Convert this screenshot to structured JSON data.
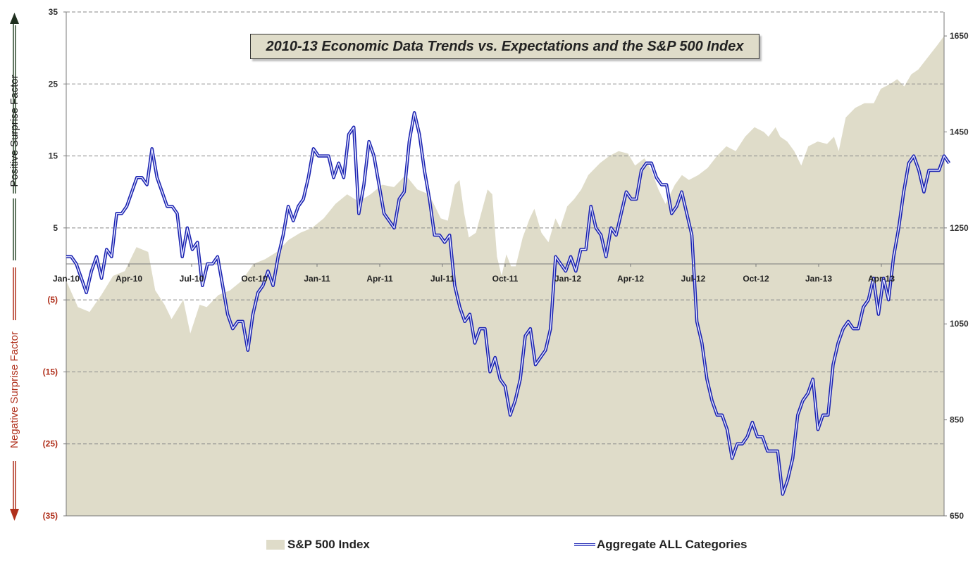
{
  "chart_data": {
    "type": "line",
    "title": "2010-13 Economic Data Trends vs. Expectations and the S&P 500 Index",
    "y_left_label_positive": "Positive Surprise Factor",
    "y_left_label_negative": "Negative Surprise Factor",
    "ylim_left": [
      -35,
      35
    ],
    "ylim_right": [
      650,
      1700
    ],
    "y_left_ticks": [
      {
        "value": 35,
        "label": "35"
      },
      {
        "value": 25,
        "label": "25"
      },
      {
        "value": 15,
        "label": "15"
      },
      {
        "value": 5,
        "label": "5"
      },
      {
        "value": -5,
        "label": "(5)"
      },
      {
        "value": -15,
        "label": "(15)"
      },
      {
        "value": -25,
        "label": "(25)"
      },
      {
        "value": -35,
        "label": "(35)"
      }
    ],
    "y_right_ticks": [
      {
        "value": 1650,
        "label": "1650"
      },
      {
        "value": 1450,
        "label": "1450"
      },
      {
        "value": 1250,
        "label": "1250"
      },
      {
        "value": 1050,
        "label": "1050"
      },
      {
        "value": 850,
        "label": "850"
      },
      {
        "value": 650,
        "label": "650"
      }
    ],
    "x_tick_labels": [
      "Jan-10",
      "Apr-10",
      "Jul-10",
      "Oct-10",
      "Jan-11",
      "Apr-11",
      "Jul-11",
      "Oct-11",
      "Jan-12",
      "Apr-12",
      "Jul-12",
      "Oct-12",
      "Jan-13",
      "Apr-13"
    ],
    "x_count": 175,
    "grid": true,
    "colors": {
      "area": "#dfdcc9",
      "line": "#1a22b0",
      "label_negative": "#b0301c",
      "label_positive": "#222222",
      "arrow_up": "#2e4a2e",
      "arrow_down": "#b0301c"
    },
    "series": [
      {
        "name": "S&P 500 Index",
        "type": "area",
        "axis": "right",
        "points": [
          [
            0,
            1140
          ],
          [
            5,
            1085
          ],
          [
            10,
            1075
          ],
          [
            15,
            1110
          ],
          [
            20,
            1150
          ],
          [
            25,
            1160
          ],
          [
            30,
            1210
          ],
          [
            35,
            1200
          ],
          [
            38,
            1120
          ],
          [
            42,
            1090
          ],
          [
            45,
            1060
          ],
          [
            50,
            1100
          ],
          [
            53,
            1030
          ],
          [
            57,
            1090
          ],
          [
            60,
            1085
          ],
          [
            65,
            1110
          ],
          [
            70,
            1120
          ],
          [
            75,
            1140
          ],
          [
            80,
            1175
          ],
          [
            85,
            1185
          ],
          [
            90,
            1200
          ],
          [
            95,
            1225
          ],
          [
            100,
            1240
          ],
          [
            105,
            1250
          ],
          [
            110,
            1270
          ],
          [
            115,
            1300
          ],
          [
            120,
            1320
          ],
          [
            125,
            1305
          ],
          [
            130,
            1320
          ],
          [
            135,
            1340
          ],
          [
            140,
            1335
          ],
          [
            145,
            1360
          ],
          [
            150,
            1330
          ],
          [
            155,
            1320
          ],
          [
            158,
            1290
          ],
          [
            160,
            1270
          ],
          [
            163,
            1265
          ],
          [
            166,
            1340
          ],
          [
            168,
            1350
          ],
          [
            170,
            1280
          ],
          [
            172,
            1230
          ],
          [
            175,
            1240
          ],
          [
            180,
            1330
          ],
          [
            182,
            1320
          ],
          [
            184,
            1190
          ],
          [
            186,
            1150
          ],
          [
            188,
            1195
          ],
          [
            190,
            1170
          ],
          [
            192,
            1170
          ],
          [
            195,
            1230
          ],
          [
            198,
            1270
          ],
          [
            200,
            1290
          ],
          [
            203,
            1240
          ],
          [
            206,
            1220
          ],
          [
            209,
            1270
          ],
          [
            211,
            1250
          ],
          [
            214,
            1295
          ],
          [
            217,
            1310
          ],
          [
            220,
            1330
          ],
          [
            223,
            1360
          ],
          [
            228,
            1385
          ],
          [
            232,
            1400
          ],
          [
            236,
            1410
          ],
          [
            240,
            1405
          ],
          [
            243,
            1380
          ],
          [
            247,
            1395
          ],
          [
            250,
            1370
          ],
          [
            253,
            1330
          ],
          [
            256,
            1300
          ],
          [
            260,
            1340
          ],
          [
            263,
            1360
          ],
          [
            266,
            1350
          ],
          [
            270,
            1360
          ],
          [
            274,
            1375
          ],
          [
            278,
            1400
          ],
          [
            282,
            1420
          ],
          [
            286,
            1410
          ],
          [
            290,
            1440
          ],
          [
            294,
            1460
          ],
          [
            298,
            1450
          ],
          [
            300,
            1440
          ],
          [
            303,
            1460
          ],
          [
            305,
            1440
          ],
          [
            308,
            1430
          ],
          [
            311,
            1410
          ],
          [
            314,
            1380
          ],
          [
            317,
            1420
          ],
          [
            321,
            1430
          ],
          [
            325,
            1425
          ],
          [
            328,
            1440
          ],
          [
            330,
            1410
          ],
          [
            333,
            1480
          ],
          [
            337,
            1500
          ],
          [
            341,
            1510
          ],
          [
            345,
            1510
          ],
          [
            348,
            1540
          ],
          [
            352,
            1550
          ],
          [
            355,
            1560
          ],
          [
            358,
            1545
          ],
          [
            361,
            1570
          ],
          [
            364,
            1580
          ],
          [
            368,
            1605
          ],
          [
            372,
            1630
          ],
          [
            375,
            1650
          ]
        ]
      },
      {
        "name": "Aggregate ALL Categories",
        "type": "line",
        "axis": "left",
        "values": [
          1,
          1,
          0,
          -2,
          -4,
          -1,
          1,
          -2,
          2,
          1,
          7,
          7,
          8,
          10,
          12,
          12,
          11,
          16,
          12,
          10,
          8,
          8,
          7,
          1,
          5,
          2,
          3,
          -3,
          0,
          0,
          1,
          -3,
          -7,
          -9,
          -8,
          -8,
          -12,
          -7,
          -4,
          -3,
          -1,
          -3,
          1,
          4,
          8,
          6,
          8,
          9,
          12,
          16,
          15,
          15,
          15,
          12,
          14,
          12,
          18,
          19,
          7,
          11,
          17,
          15,
          11,
          7,
          6,
          5,
          9,
          10,
          17,
          21,
          18,
          13,
          9,
          4,
          4,
          3,
          4,
          -3,
          -6,
          -8,
          -7,
          -11,
          -9,
          -9,
          -15,
          -13,
          -16,
          -17,
          -21,
          -19,
          -16,
          -10,
          -9,
          -14,
          -13,
          -12,
          -9,
          1,
          0,
          -1,
          1,
          -1,
          2,
          2,
          8,
          5,
          4,
          1,
          5,
          4,
          7,
          10,
          9,
          9,
          13,
          14,
          14,
          12,
          11,
          11,
          7,
          8,
          10,
          7,
          4,
          -8,
          -11,
          -16,
          -19,
          -21,
          -21,
          -23,
          -27,
          -25,
          -25,
          -24,
          -22,
          -24,
          -24,
          -26,
          -26,
          -26,
          -32,
          -30,
          -27,
          -21,
          -19,
          -18,
          -16,
          -23,
          -21,
          -21,
          -14,
          -11,
          -9,
          -8,
          -9,
          -9,
          -6,
          -5,
          -2,
          -7,
          -2,
          -5,
          1,
          5,
          10,
          14,
          15,
          13,
          10,
          13,
          13,
          13,
          15,
          14
        ]
      }
    ]
  }
}
